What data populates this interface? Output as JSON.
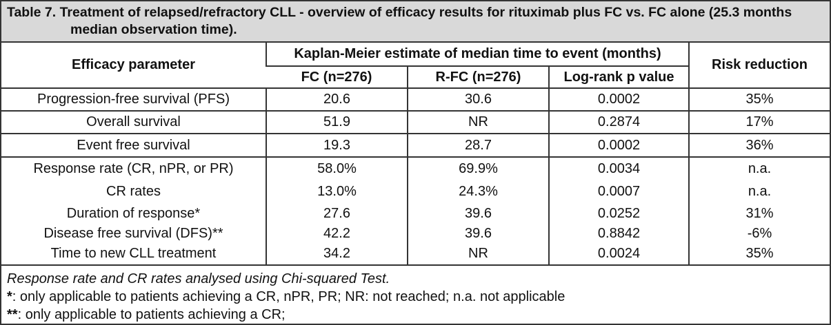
{
  "title": "Table 7. Treatment of relapsed/refractory CLL - overview of efficacy results for rituximab plus FC vs. FC alone (25.3 months median observation time).",
  "header": {
    "parameter": "Efficacy parameter",
    "group": "Kaplan-Meier estimate of median time to event (months)",
    "fc": "FC (n=276)",
    "rfc": "R-FC (n=276)",
    "logrank": "Log-rank p value",
    "risk": "Risk reduction"
  },
  "rows": [
    [
      "Progression-free survival (PFS)",
      "20.6",
      "30.6",
      "0.0002",
      "35%"
    ],
    [
      "Overall survival",
      "51.9",
      "NR",
      "0.2874",
      "17%"
    ],
    [
      "Event free survival",
      "19.3",
      "28.7",
      "0.0002",
      "36%"
    ],
    [
      "Response rate (CR, nPR, or PR)",
      "58.0%",
      "69.9%",
      "0.0034",
      "n.a."
    ],
    [
      "CR rates",
      "13.0%",
      "24.3%",
      "0.0007",
      "n.a."
    ],
    [
      "Duration of response*",
      "27.6",
      "39.6",
      "0.0252",
      "31%"
    ],
    [
      "Disease free survival (DFS)**",
      "42.2",
      "39.6",
      "0.8842",
      "-6%"
    ],
    [
      "Time to new CLL treatment",
      "34.2",
      "NR",
      "0.0024",
      "35%"
    ]
  ],
  "footnotes": {
    "note": "Response rate and CR rates analysed using Chi-squared Test.",
    "items": [
      {
        "marker": "*",
        "text": ": only applicable to patients achieving a CR, nPR, PR; NR: not reached; n.a. not applicable"
      },
      {
        "marker": "**",
        "text": ": only applicable to patients achieving a CR;"
      }
    ]
  }
}
